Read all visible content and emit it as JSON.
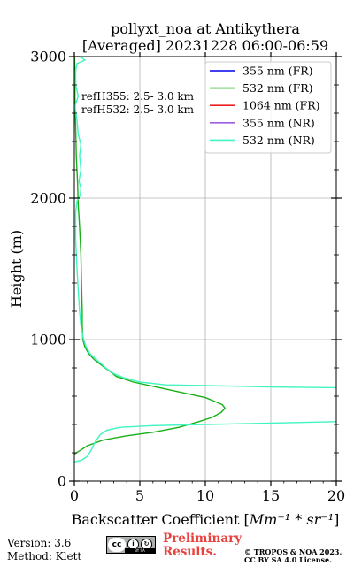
{
  "chart_data": {
    "type": "line",
    "title_lines": [
      "pollyxt_noa at Antikythera",
      "[Averaged] 20231228 06:00-06:59"
    ],
    "xlabel_prefix": "Backscatter Coefficient [",
    "xlabel_unit": "Mm⁻¹ * sr⁻¹",
    "xlabel_suffix": "]",
    "ylabel": "Height (m)",
    "xlim": [
      0,
      20
    ],
    "ylim": [
      0,
      3000
    ],
    "x_ticks": [
      0,
      5,
      10,
      15,
      20
    ],
    "y_ticks": [
      0,
      1000,
      2000,
      3000
    ],
    "x_tick_labels": [
      "0",
      "5",
      "10",
      "15",
      "20"
    ],
    "y_tick_labels": [
      "0",
      "1000",
      "2000",
      "3000"
    ],
    "grid": true,
    "legend_position": "top-right",
    "annotations": [
      "refH355:  2.5- 3.0 km",
      "refH532:  2.5- 3.0 km"
    ],
    "series": [
      {
        "name": "355 nm (FR)",
        "color": "#0000ee",
        "points": []
      },
      {
        "name": "532 nm (FR)",
        "color": "#16b016",
        "points": [
          [
            0,
            190
          ],
          [
            1,
            250
          ],
          [
            2.2,
            290
          ],
          [
            4,
            320
          ],
          [
            6,
            345
          ],
          [
            8,
            380
          ],
          [
            9.5,
            420
          ],
          [
            10.5,
            450
          ],
          [
            11.2,
            485
          ],
          [
            11.5,
            515
          ],
          [
            11.3,
            540
          ],
          [
            10.8,
            560
          ],
          [
            10,
            590
          ],
          [
            8,
            630
          ],
          [
            6,
            670
          ],
          [
            4.5,
            700
          ],
          [
            3.2,
            740
          ],
          [
            2.8,
            770
          ],
          [
            2.2,
            810
          ],
          [
            1.5,
            860
          ],
          [
            1.1,
            900
          ],
          [
            0.8,
            950
          ],
          [
            0.65,
            1000
          ],
          [
            0.6,
            1100
          ],
          [
            0.6,
            1200
          ],
          [
            0.55,
            1400
          ],
          [
            0.5,
            1600
          ],
          [
            0.4,
            1800
          ],
          [
            0.3,
            1950
          ],
          [
            0.25,
            2100
          ],
          [
            0.15,
            2300
          ],
          [
            0.1,
            2500
          ],
          [
            0.05,
            2700
          ],
          [
            0.05,
            2850
          ],
          [
            0.02,
            3000
          ]
        ]
      },
      {
        "name": "1064 nm (FR)",
        "color": "#ee2020",
        "points": []
      },
      {
        "name": "355 nm (NR)",
        "color": "#a05ce0",
        "points": []
      },
      {
        "name": "532 nm (NR)",
        "color": "#3ff5c0",
        "points": [
          [
            0,
            135
          ],
          [
            0.6,
            150
          ],
          [
            1,
            175
          ],
          [
            1.3,
            220
          ],
          [
            1.6,
            280
          ],
          [
            2,
            330
          ],
          [
            2.5,
            360
          ],
          [
            3.5,
            380
          ],
          [
            6,
            392
          ],
          [
            10,
            400
          ],
          [
            15,
            410
          ],
          [
            20,
            420
          ],
          [
            22,
            425
          ],
          [
            22,
            650
          ],
          [
            20,
            660
          ],
          [
            15,
            665
          ],
          [
            10,
            675
          ],
          [
            7,
            680
          ],
          [
            5,
            700
          ],
          [
            3.8,
            730
          ],
          [
            3,
            760
          ],
          [
            2.4,
            800
          ],
          [
            1.8,
            850
          ],
          [
            1.2,
            900
          ],
          [
            0.9,
            950
          ],
          [
            0.7,
            1000
          ],
          [
            0.5,
            1100
          ],
          [
            0.4,
            1200
          ],
          [
            0.3,
            1350
          ],
          [
            0.2,
            1500
          ],
          [
            0.1,
            1700
          ],
          [
            0.1,
            1900
          ],
          [
            0.2,
            1980
          ],
          [
            0.45,
            2020
          ],
          [
            0.5,
            2070
          ],
          [
            0.35,
            2120
          ],
          [
            0.5,
            2200
          ],
          [
            0.4,
            2300
          ],
          [
            0.5,
            2380
          ],
          [
            0.3,
            2450
          ],
          [
            0.2,
            2550
          ],
          [
            0.05,
            2650
          ],
          [
            0.3,
            2720
          ],
          [
            0.1,
            2800
          ],
          [
            0.1,
            2900
          ],
          [
            0.2,
            2950
          ],
          [
            0.8,
            2975
          ],
          [
            0.6,
            2990
          ],
          [
            0.3,
            3000
          ]
        ]
      }
    ]
  },
  "footer": {
    "version": "Version: 3.6",
    "method": "Method: Klett",
    "preliminary_line1": "Preliminary",
    "preliminary_line2": "Results.",
    "copyright_line1": "© TROPOS & NOA 2023.",
    "copyright_line2": "CC BY SA 4.0 License.",
    "license_badge": {
      "cc": "cc",
      "by": "i",
      "sa": "↻",
      "caption": "BY SA"
    }
  }
}
